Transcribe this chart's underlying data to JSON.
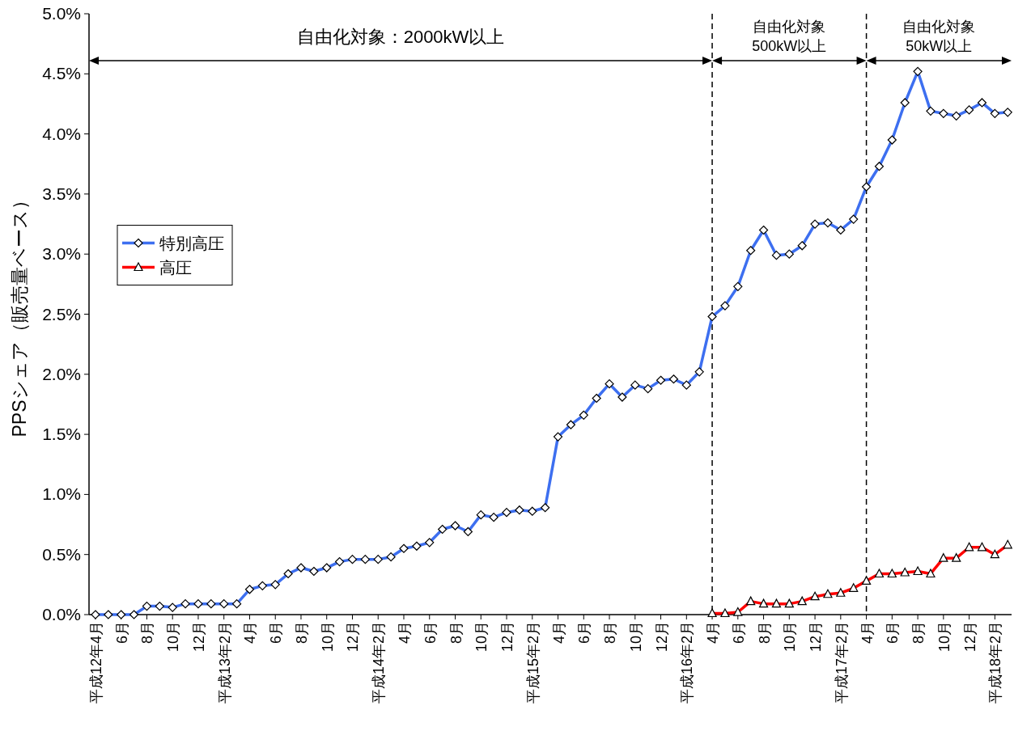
{
  "chart_data": {
    "type": "line",
    "ylabel": "PPSシェア（販売量ベース）",
    "x": [
      "2000-04",
      "2000-05",
      "2000-06",
      "2000-07",
      "2000-08",
      "2000-09",
      "2000-10",
      "2000-11",
      "2000-12",
      "2001-01",
      "2001-02",
      "2001-03",
      "2001-04",
      "2001-05",
      "2001-06",
      "2001-07",
      "2001-08",
      "2001-09",
      "2001-10",
      "2001-11",
      "2001-12",
      "2002-01",
      "2002-02",
      "2002-03",
      "2002-04",
      "2002-05",
      "2002-06",
      "2002-07",
      "2002-08",
      "2002-09",
      "2002-10",
      "2002-11",
      "2002-12",
      "2003-01",
      "2003-02",
      "2003-03",
      "2003-04",
      "2003-05",
      "2003-06",
      "2003-07",
      "2003-08",
      "2003-09",
      "2003-10",
      "2003-11",
      "2003-12",
      "2004-01",
      "2004-02",
      "2004-03",
      "2004-04",
      "2004-05",
      "2004-06",
      "2004-07",
      "2004-08",
      "2004-09",
      "2004-10",
      "2004-11",
      "2004-12",
      "2005-01",
      "2005-02",
      "2005-03",
      "2005-04",
      "2005-05",
      "2005-06",
      "2005-07",
      "2005-08",
      "2005-09",
      "2005-10",
      "2005-11",
      "2005-12",
      "2006-01",
      "2006-02",
      "2006-03"
    ],
    "series": [
      {
        "name": "特別高圧",
        "color": "#3d6ff0",
        "marker": "diamond",
        "values": [
          0,
          0,
          0,
          0,
          0.07,
          0.07,
          0.06,
          0.09,
          0.09,
          0.09,
          0.09,
          0.09,
          0.21,
          0.24,
          0.25,
          0.34,
          0.39,
          0.36,
          0.39,
          0.44,
          0.46,
          0.46,
          0.46,
          0.48,
          0.55,
          0.57,
          0.6,
          0.71,
          0.74,
          0.69,
          0.83,
          0.81,
          0.85,
          0.87,
          0.86,
          0.89,
          1.48,
          1.58,
          1.66,
          1.8,
          1.92,
          1.81,
          1.91,
          1.88,
          1.95,
          1.96,
          1.91,
          2.02,
          2.48,
          2.57,
          2.73,
          3.03,
          3.2,
          2.99,
          3.0,
          3.07,
          3.25,
          3.26,
          3.2,
          3.29,
          3.56,
          3.73,
          3.95,
          4.26,
          4.52,
          4.19,
          4.17,
          4.15,
          4.2,
          4.26,
          4.17,
          4.18
        ]
      },
      {
        "name": "高圧",
        "color": "#ff0000",
        "marker": "triangle",
        "x": [
          "2004-04",
          "2004-05",
          "2004-06",
          "2004-07",
          "2004-08",
          "2004-09",
          "2004-10",
          "2004-11",
          "2004-12",
          "2005-01",
          "2005-02",
          "2005-03",
          "2005-04",
          "2005-05",
          "2005-06",
          "2005-07",
          "2005-08",
          "2005-09",
          "2005-10",
          "2005-11",
          "2005-12",
          "2006-01",
          "2006-02",
          "2006-03"
        ],
        "values": [
          0.01,
          0.01,
          0.02,
          0.11,
          0.09,
          0.09,
          0.09,
          0.11,
          0.15,
          0.17,
          0.18,
          0.22,
          0.28,
          0.34,
          0.34,
          0.35,
          0.36,
          0.34,
          0.47,
          0.47,
          0.56,
          0.56,
          0.5,
          0.58
        ]
      }
    ],
    "xlim": [
      "2000-03-16",
      "2006-03-10"
    ],
    "xticks": [
      {
        "value": "2000-04",
        "label": "平成12年4月"
      },
      {
        "value": "2000-06",
        "label": "6月"
      },
      {
        "value": "2000-08",
        "label": "8月"
      },
      {
        "value": "2000-10",
        "label": "10月"
      },
      {
        "value": "2000-12",
        "label": "12月"
      },
      {
        "value": "2001-02",
        "label": "平成13年2月"
      },
      {
        "value": "2001-04",
        "label": "4月"
      },
      {
        "value": "2001-06",
        "label": "6月"
      },
      {
        "value": "2001-08",
        "label": "8月"
      },
      {
        "value": "2001-10",
        "label": "10月"
      },
      {
        "value": "2001-12",
        "label": "12月"
      },
      {
        "value": "2002-02",
        "label": "平成14年2月"
      },
      {
        "value": "2002-04",
        "label": "4月"
      },
      {
        "value": "2002-06",
        "label": "6月"
      },
      {
        "value": "2002-08",
        "label": "8月"
      },
      {
        "value": "2002-10",
        "label": "10月"
      },
      {
        "value": "2002-12",
        "label": "12月"
      },
      {
        "value": "2003-02",
        "label": "平成15年2月"
      },
      {
        "value": "2003-04",
        "label": "4月"
      },
      {
        "value": "2003-06",
        "label": "6月"
      },
      {
        "value": "2003-08",
        "label": "8月"
      },
      {
        "value": "2003-10",
        "label": "10月"
      },
      {
        "value": "2003-12",
        "label": "12月"
      },
      {
        "value": "2004-02",
        "label": "平成16年2月"
      },
      {
        "value": "2004-04",
        "label": "4月"
      },
      {
        "value": "2004-06",
        "label": "6月"
      },
      {
        "value": "2004-08",
        "label": "8月"
      },
      {
        "value": "2004-10",
        "label": "10月"
      },
      {
        "value": "2004-12",
        "label": "12月"
      },
      {
        "value": "2005-02",
        "label": "平成17年2月"
      },
      {
        "value": "2005-04",
        "label": "4月"
      },
      {
        "value": "2005-06",
        "label": "6月"
      },
      {
        "value": "2005-08",
        "label": "8月"
      },
      {
        "value": "2005-10",
        "label": "10月"
      },
      {
        "value": "2005-12",
        "label": "12月"
      },
      {
        "value": "2006-02",
        "label": "平成18年2月"
      }
    ],
    "ylim": [
      0,
      5
    ],
    "yticks": [
      {
        "value": 0,
        "label": "0.0%"
      },
      {
        "value": 0.5,
        "label": "0.5%"
      },
      {
        "value": 1,
        "label": "1.0%"
      },
      {
        "value": 1.5,
        "label": "1.5%"
      },
      {
        "value": 2,
        "label": "2.0%"
      },
      {
        "value": 2.5,
        "label": "2.5%"
      },
      {
        "value": 3,
        "label": "3.0%"
      },
      {
        "value": 3.5,
        "label": "3.5%"
      },
      {
        "value": 4,
        "label": "4.0%"
      },
      {
        "value": 4.5,
        "label": "4.5%"
      },
      {
        "value": 5,
        "label": "5.0%"
      }
    ],
    "ref_lines": [
      {
        "axis": "x",
        "value": "2004-04",
        "line_style": "dashed"
      },
      {
        "axis": "x",
        "value": "2005-04",
        "line_style": "dashed"
      }
    ],
    "annotations": [
      "自由化対象：2000kW以上",
      "自由化対象\n500kW以上",
      "自由化対象\n50kW以上"
    ],
    "legend": "left",
    "grid": false
  }
}
